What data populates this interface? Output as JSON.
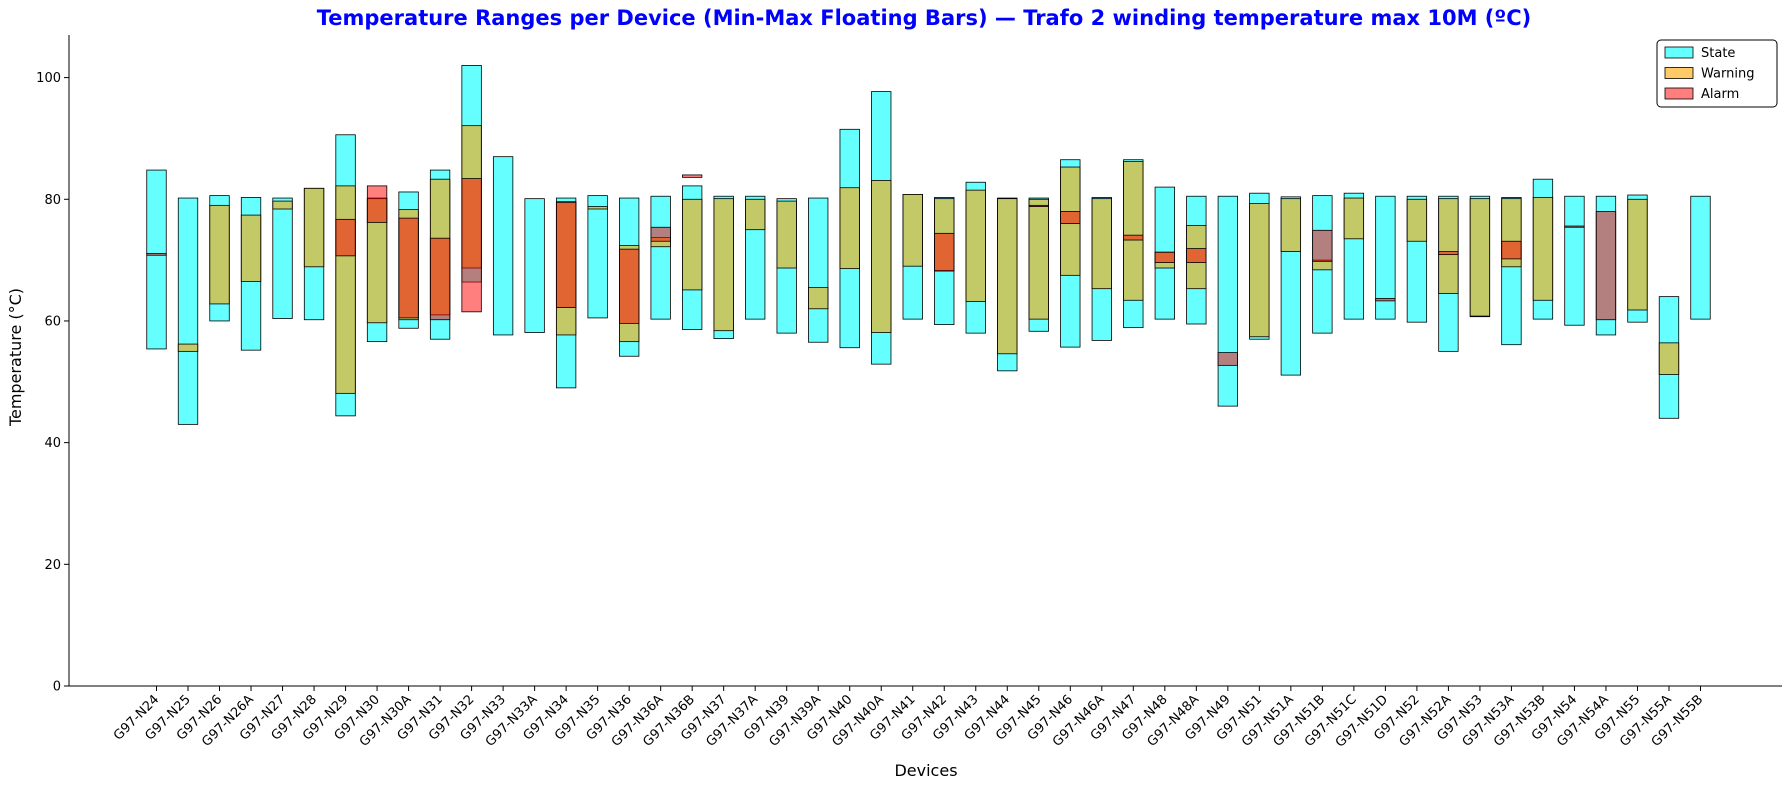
{
  "colors": {
    "title": "#0000ff",
    "state": "#00ffff",
    "warning": "#ffa500",
    "alarm": "#ff0000",
    "edge": "#000000"
  },
  "chart_data": {
    "type": "bar",
    "subtype": "floating-range",
    "title": "Temperature Ranges per Device (Min-Max Floating Bars) — Trafo 2 winding temperature max 10M (ºC)",
    "xlabel": "Devices",
    "ylabel": "Temperature (°C)",
    "ylim": [
      0,
      107
    ],
    "yticks": [
      0,
      20,
      40,
      60,
      80,
      100
    ],
    "legend_position": "top-right",
    "grid": false,
    "categories": [
      "G97-N24",
      "G97-N25",
      "G97-N26",
      "G97-N26A",
      "G97-N27",
      "G97-N28",
      "G97-N29",
      "G97-N30",
      "G97-N30A",
      "G97-N31",
      "G97-N32",
      "G97-N33",
      "G97-N33A",
      "G97-N34",
      "G97-N35",
      "G97-N36",
      "G97-N36A",
      "G97-N36B",
      "G97-N37",
      "G97-N37A",
      "G97-N39",
      "G97-N39A",
      "G97-N40",
      "G97-N40A",
      "G97-N41",
      "G97-N42",
      "G97-N43",
      "G97-N44",
      "G97-N45",
      "G97-N46",
      "G97-N46A",
      "G97-N47",
      "G97-N48",
      "G97-N48A",
      "G97-N49",
      "G97-N51",
      "G97-N51A",
      "G97-N51B",
      "G97-N51C",
      "G97-N51D",
      "G97-N52",
      "G97-N52A",
      "G97-N53",
      "G97-N53A",
      "G97-N53B",
      "G97-N54",
      "G97-N54A",
      "G97-N55",
      "G97-N55A",
      "G97-N55B"
    ],
    "series": [
      {
        "name": "State",
        "ranges": [
          [
            55.4,
            84.8
          ],
          [
            43.0,
            80.2
          ],
          [
            60.0,
            80.6
          ],
          [
            55.2,
            80.3
          ],
          [
            60.4,
            80.2
          ],
          [
            60.2,
            81.8
          ],
          [
            44.4,
            90.6
          ],
          [
            56.6,
            80.2
          ],
          [
            58.8,
            81.2
          ],
          [
            57.0,
            84.8
          ],
          [
            66.4,
            102.0
          ],
          [
            57.7,
            87.0
          ],
          [
            58.1,
            80.1
          ],
          [
            49.0,
            80.2
          ],
          [
            60.5,
            80.6
          ],
          [
            54.2,
            80.2
          ],
          [
            60.3,
            80.5
          ],
          [
            58.6,
            82.2
          ],
          [
            57.1,
            80.5
          ],
          [
            60.3,
            80.5
          ],
          [
            58.0,
            80.1
          ],
          [
            56.5,
            80.2
          ],
          [
            55.6,
            91.5
          ],
          [
            52.9,
            97.7
          ],
          [
            60.3,
            80.8
          ],
          [
            59.4,
            80.3
          ],
          [
            58.0,
            82.8
          ],
          [
            51.8,
            80.2
          ],
          [
            58.3,
            80.2
          ],
          [
            55.7,
            86.5
          ],
          [
            56.8,
            80.3
          ],
          [
            58.9,
            86.5
          ],
          [
            60.3,
            82.0
          ],
          [
            59.5,
            80.5
          ],
          [
            46.0,
            80.5
          ],
          [
            57.0,
            81.0
          ],
          [
            51.1,
            80.4
          ],
          [
            58.0,
            80.6
          ],
          [
            60.3,
            81.0
          ],
          [
            60.3,
            80.5
          ],
          [
            59.8,
            80.5
          ],
          [
            55.0,
            80.5
          ],
          [
            60.7,
            80.5
          ],
          [
            56.1,
            80.3
          ],
          [
            60.3,
            83.3
          ],
          [
            59.3,
            80.5
          ],
          [
            57.7,
            80.5
          ],
          [
            59.8,
            80.7
          ],
          [
            44.0,
            64.0
          ],
          [
            60.3,
            80.5
          ]
        ]
      },
      {
        "name": "Warning",
        "ranges": [
          null,
          [
            55.0,
            56.2
          ],
          [
            62.8,
            79.0
          ],
          [
            66.5,
            77.4
          ],
          [
            78.4,
            79.7
          ],
          [
            68.9,
            81.8
          ],
          [
            48.1,
            82.2
          ],
          [
            59.7,
            80.1
          ],
          [
            60.2,
            78.3
          ],
          [
            61.0,
            83.3
          ],
          [
            68.7,
            92.1
          ],
          null,
          null,
          [
            57.7,
            79.6
          ],
          [
            78.4,
            78.8
          ],
          [
            56.6,
            72.4
          ],
          [
            72.2,
            73.7
          ],
          [
            65.1,
            80.0
          ],
          [
            58.4,
            80.1
          ],
          [
            75.0,
            80.0
          ],
          [
            68.7,
            79.7
          ],
          [
            62.0,
            65.5
          ],
          [
            68.6,
            81.9
          ],
          [
            58.1,
            83.1
          ],
          [
            69.0,
            80.8
          ],
          [
            68.3,
            80.1
          ],
          [
            63.2,
            81.5
          ],
          [
            54.6,
            80.1
          ],
          [
            60.3,
            80.0
          ],
          [
            67.5,
            85.3
          ],
          [
            65.3,
            80.1
          ],
          [
            63.4,
            86.2
          ],
          [
            68.7,
            71.3
          ],
          [
            65.3,
            75.7
          ],
          null,
          [
            57.4,
            79.3
          ],
          [
            71.4,
            80.1
          ],
          [
            68.4,
            70.0
          ],
          [
            73.5,
            80.2
          ],
          null,
          [
            73.1,
            80.0
          ],
          [
            64.5,
            80.1
          ],
          [
            60.8,
            80.1
          ],
          [
            68.9,
            80.1
          ],
          [
            63.4,
            80.3
          ],
          null,
          null,
          [
            61.8,
            80.0
          ],
          [
            51.2,
            56.4
          ],
          null
        ]
      },
      {
        "name": "Alarm",
        "ranges": [
          [
            70.8,
            71.1
          ],
          null,
          null,
          null,
          null,
          null,
          [
            70.7,
            76.7
          ],
          [
            76.2,
            82.2
          ],
          [
            60.5,
            76.9
          ],
          [
            60.2,
            73.6
          ],
          [
            61.5,
            83.4
          ],
          null,
          null,
          [
            62.2,
            79.5
          ],
          null,
          [
            59.6,
            71.8
          ],
          [
            73.1,
            75.4
          ],
          [
            83.6,
            84.0
          ],
          null,
          null,
          null,
          null,
          null,
          null,
          null,
          [
            68.2,
            74.4
          ],
          null,
          null,
          [
            78.8,
            79.0
          ],
          [
            76.0,
            78.0
          ],
          null,
          [
            73.3,
            74.1
          ],
          [
            69.6,
            71.3
          ],
          [
            69.6,
            71.9
          ],
          [
            52.7,
            54.8
          ],
          null,
          null,
          [
            69.8,
            74.9
          ],
          null,
          [
            63.3,
            63.7
          ],
          null,
          [
            70.9,
            71.4
          ],
          null,
          [
            70.2,
            73.1
          ],
          null,
          [
            75.4,
            75.6
          ],
          [
            60.2,
            78.0
          ],
          null,
          null,
          null
        ]
      }
    ]
  }
}
